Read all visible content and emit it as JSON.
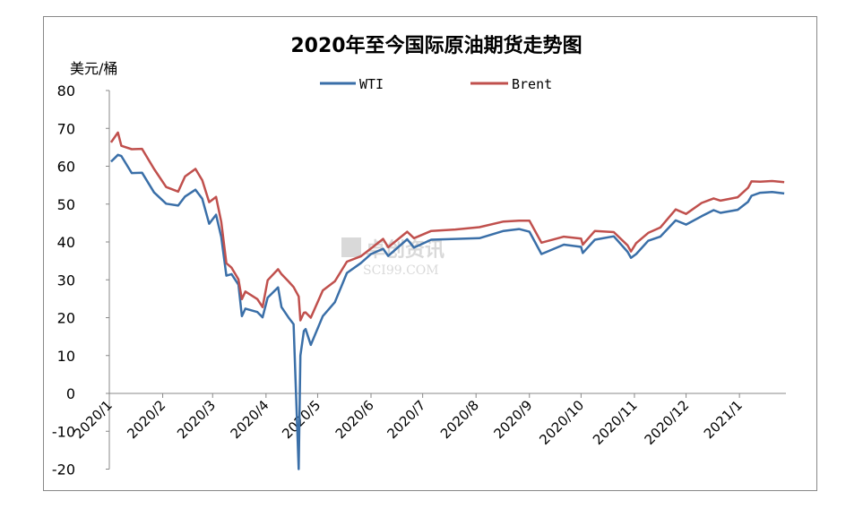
{
  "chart_data": {
    "type": "line",
    "title": "2020年至今国际原油期货走势图",
    "ylabel": "美元/桶",
    "xlabel": "",
    "ylim": [
      -20,
      80
    ],
    "yticks": [
      80,
      70,
      60,
      50,
      40,
      30,
      20,
      10,
      0,
      -10,
      -20
    ],
    "xlim": [
      "2020-01-01",
      "2021-01-28"
    ],
    "xtick_labels": [
      "2020/1",
      "2020/2",
      "2020/3",
      "2020/4",
      "2020/5",
      "2020/6",
      "2020/7",
      "2020/8",
      "2020/9",
      "2020/10",
      "2020/11",
      "2020/12",
      "2021/1"
    ],
    "xtick_dates": [
      "2020-01-01",
      "2020-02-01",
      "2020-03-01",
      "2020-04-01",
      "2020-05-01",
      "2020-06-01",
      "2020-07-01",
      "2020-08-01",
      "2020-09-01",
      "2020-10-01",
      "2020-11-01",
      "2020-12-01",
      "2021-01-01"
    ],
    "legend": "top-center",
    "grid": false,
    "watermark": "卓创资讯 SCI99.COM",
    "x": [
      "2020-01-02",
      "2020-01-06",
      "2020-01-08",
      "2020-01-14",
      "2020-01-20",
      "2020-01-27",
      "2020-02-03",
      "2020-02-10",
      "2020-02-14",
      "2020-02-20",
      "2020-02-24",
      "2020-02-28",
      "2020-03-03",
      "2020-03-06",
      "2020-03-09",
      "2020-03-12",
      "2020-03-16",
      "2020-03-18",
      "2020-03-20",
      "2020-03-27",
      "2020-03-30",
      "2020-04-02",
      "2020-04-08",
      "2020-04-10",
      "2020-04-14",
      "2020-04-17",
      "2020-04-20",
      "2020-04-21",
      "2020-04-23",
      "2020-04-24",
      "2020-04-27",
      "2020-05-04",
      "2020-05-11",
      "2020-05-18",
      "2020-05-26",
      "2020-06-01",
      "2020-06-08",
      "2020-06-11",
      "2020-06-22",
      "2020-06-26",
      "2020-07-06",
      "2020-07-20",
      "2020-08-03",
      "2020-08-17",
      "2020-08-26",
      "2020-09-01",
      "2020-09-08",
      "2020-09-21",
      "2020-10-01",
      "2020-10-02",
      "2020-10-09",
      "2020-10-20",
      "2020-10-28",
      "2020-10-30",
      "2020-11-02",
      "2020-11-09",
      "2020-11-16",
      "2020-11-25",
      "2020-12-01",
      "2020-12-10",
      "2020-12-17",
      "2020-12-21",
      "2020-12-31",
      "2021-01-06",
      "2021-01-08",
      "2021-01-13",
      "2021-01-20",
      "2021-01-27"
    ],
    "series": [
      {
        "name": "WTI",
        "color": "#3a6fa8",
        "values": [
          61.2,
          63.0,
          62.7,
          58.2,
          58.3,
          53.1,
          50.1,
          49.6,
          52.0,
          53.8,
          51.4,
          44.8,
          47.2,
          41.3,
          31.1,
          31.5,
          28.7,
          20.4,
          22.4,
          21.5,
          20.1,
          25.3,
          28.0,
          22.8,
          20.1,
          18.3,
          -20,
          10.0,
          16.5,
          17.0,
          12.8,
          20.4,
          24.1,
          31.8,
          34.4,
          36.8,
          38.2,
          36.3,
          40.7,
          38.5,
          40.6,
          40.8,
          41.0,
          42.9,
          43.4,
          42.7,
          36.8,
          39.3,
          38.7,
          37.1,
          40.6,
          41.5,
          37.4,
          35.8,
          36.8,
          40.3,
          41.4,
          45.7,
          44.6,
          46.8,
          48.4,
          47.7,
          48.5,
          50.6,
          52.2,
          53.0,
          53.2,
          52.8
        ]
      },
      {
        "name": "Brent",
        "color": "#c0504d",
        "values": [
          66.3,
          68.9,
          65.4,
          64.5,
          64.6,
          59.3,
          54.5,
          53.3,
          57.3,
          59.3,
          56.3,
          50.5,
          51.9,
          45.3,
          34.4,
          33.2,
          30.1,
          24.9,
          26.9,
          24.9,
          22.8,
          29.9,
          32.8,
          31.5,
          29.6,
          28.1,
          25.6,
          19.3,
          21.3,
          21.4,
          20.0,
          27.2,
          29.6,
          34.8,
          36.2,
          38.3,
          40.8,
          38.6,
          42.7,
          41.0,
          42.9,
          43.3,
          43.9,
          45.4,
          45.6,
          45.6,
          39.8,
          41.4,
          40.9,
          39.3,
          42.9,
          42.6,
          39.1,
          37.5,
          39.7,
          42.4,
          43.8,
          48.6,
          47.4,
          50.3,
          51.5,
          50.9,
          51.8,
          54.3,
          55.99,
          55.9,
          56.1,
          55.8
        ]
      }
    ]
  }
}
